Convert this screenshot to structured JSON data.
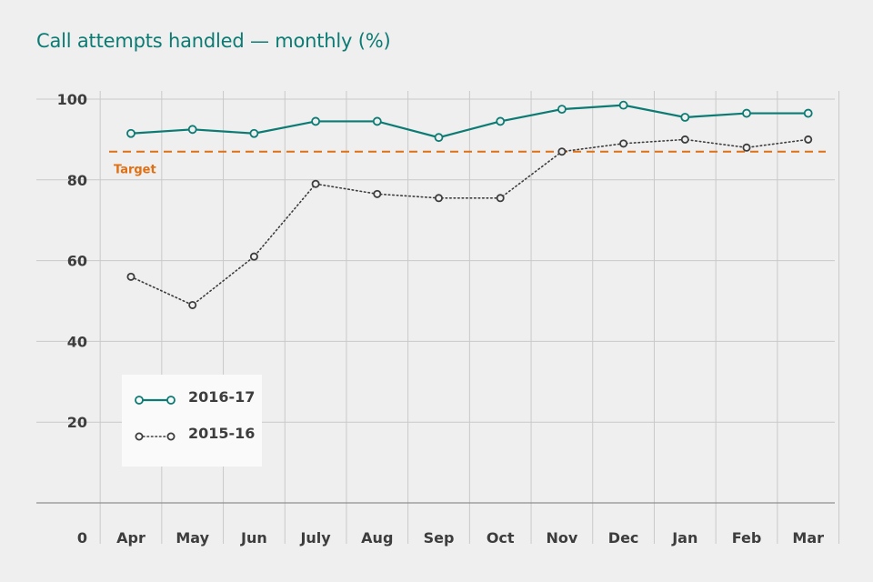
{
  "title": "Call attempts handled — monthly (%)",
  "chart_data": {
    "type": "line",
    "title": "Call attempts handled — monthly (%)",
    "xlabel": "",
    "ylabel": "",
    "categories": [
      "Apr",
      "May",
      "Jun",
      "July",
      "Aug",
      "Sep",
      "Oct",
      "Nov",
      "Dec",
      "Jan",
      "Feb",
      "Mar"
    ],
    "ylim": [
      0,
      100
    ],
    "yticks": [
      0,
      20,
      40,
      60,
      80,
      100
    ],
    "grid": true,
    "legend_position": "bottom-left",
    "series": [
      {
        "name": "2016-17",
        "values": [
          91.5,
          92.5,
          91.5,
          94.5,
          94.5,
          90.5,
          94.5,
          97.5,
          98.5,
          95.5,
          96.5,
          96.5
        ],
        "color": "#0b7b73",
        "style": "solid"
      },
      {
        "name": "2015-16",
        "values": [
          56,
          49,
          61,
          79,
          76.5,
          75.5,
          75.5,
          87,
          89,
          90,
          88,
          90
        ],
        "color": "#3d3d3d",
        "style": "dotted"
      }
    ],
    "reference_lines": [
      {
        "label": "Target",
        "value": 87,
        "color": "#e07014",
        "style": "dashed"
      }
    ]
  }
}
